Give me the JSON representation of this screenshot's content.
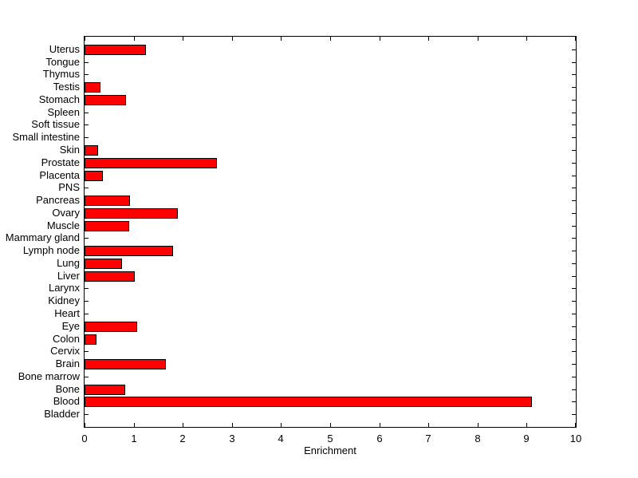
{
  "figure": {
    "background": "#FFFFFF"
  },
  "chart_data": {
    "type": "bar",
    "orientation": "horizontal",
    "title": "",
    "xlabel": "Enrichment",
    "ylabel": "",
    "xlim": [
      0,
      10
    ],
    "xticks": [
      0,
      1,
      2,
      3,
      4,
      5,
      6,
      7,
      8,
      9,
      10
    ],
    "grid": false,
    "legend": "none",
    "bar_color": "#FF0000",
    "bar_edge_color": "#000000",
    "axis_color": "#000000",
    "category_order": "top-to-bottom",
    "categories": [
      "Uterus",
      "Tongue",
      "Thymus",
      "Testis",
      "Stomach",
      "Spleen",
      "Soft tissue",
      "Small intestine",
      "Skin",
      "Prostate",
      "Placenta",
      "PNS",
      "Pancreas",
      "Ovary",
      "Muscle",
      "Mammary gland",
      "Lymph node",
      "Lung",
      "Liver",
      "Larynx",
      "Kidney",
      "Heart",
      "Eye",
      "Colon",
      "Cervix",
      "Brain",
      "Bone marrow",
      "Bone",
      "Blood",
      "Bladder"
    ],
    "values": [
      1.25,
      0,
      0,
      0.32,
      0.84,
      0,
      0,
      0,
      0.28,
      2.7,
      0.37,
      0,
      0.92,
      1.9,
      0.91,
      0,
      1.8,
      0.76,
      1.02,
      0,
      0,
      0,
      1.07,
      0.24,
      0,
      1.65,
      0,
      0.83,
      9.1,
      0
    ]
  }
}
